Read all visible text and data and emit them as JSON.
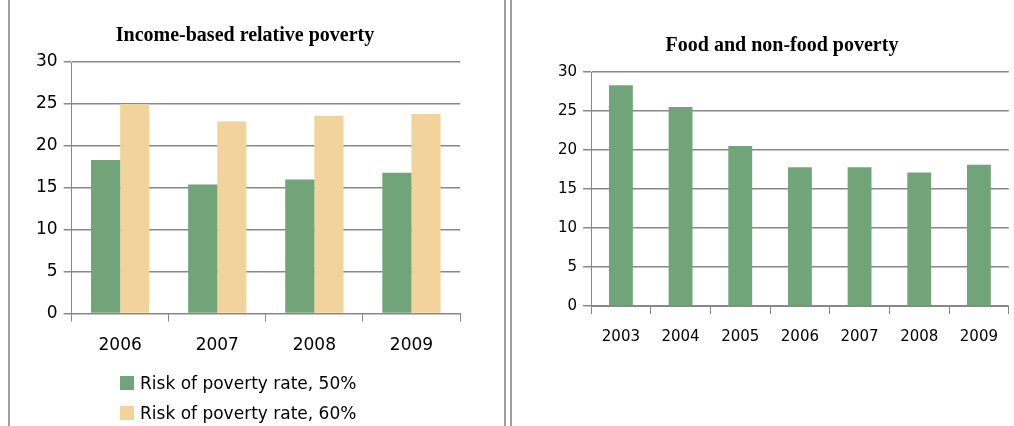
{
  "chart_data": [
    {
      "type": "bar",
      "title": "Income-based relative poverty",
      "categories": [
        "2006",
        "2007",
        "2008",
        "2009"
      ],
      "series": [
        {
          "name": "Risk of poverty rate, 50%",
          "color": "#72a479",
          "values": [
            18.3,
            15.4,
            16.0,
            16.8
          ]
        },
        {
          "name": "Risk of poverty rate, 60%",
          "color": "#f0d49c",
          "values": [
            25.0,
            22.9,
            23.6,
            23.8
          ]
        }
      ],
      "ylim": [
        0,
        30
      ],
      "yticks": [
        0,
        5,
        10,
        15,
        20,
        25,
        30
      ],
      "grid": "y",
      "legend": "bottom"
    },
    {
      "type": "bar",
      "title": "Food and non-food poverty",
      "categories": [
        "2003",
        "2004",
        "2005",
        "2006",
        "2007",
        "2008",
        "2009"
      ],
      "values": [
        28.3,
        25.5,
        20.5,
        17.8,
        17.8,
        17.1,
        18.1
      ],
      "color": "#72a479",
      "ylim": [
        0,
        30
      ],
      "yticks": [
        0,
        5,
        10,
        15,
        20,
        25,
        30
      ],
      "grid": "y"
    }
  ]
}
